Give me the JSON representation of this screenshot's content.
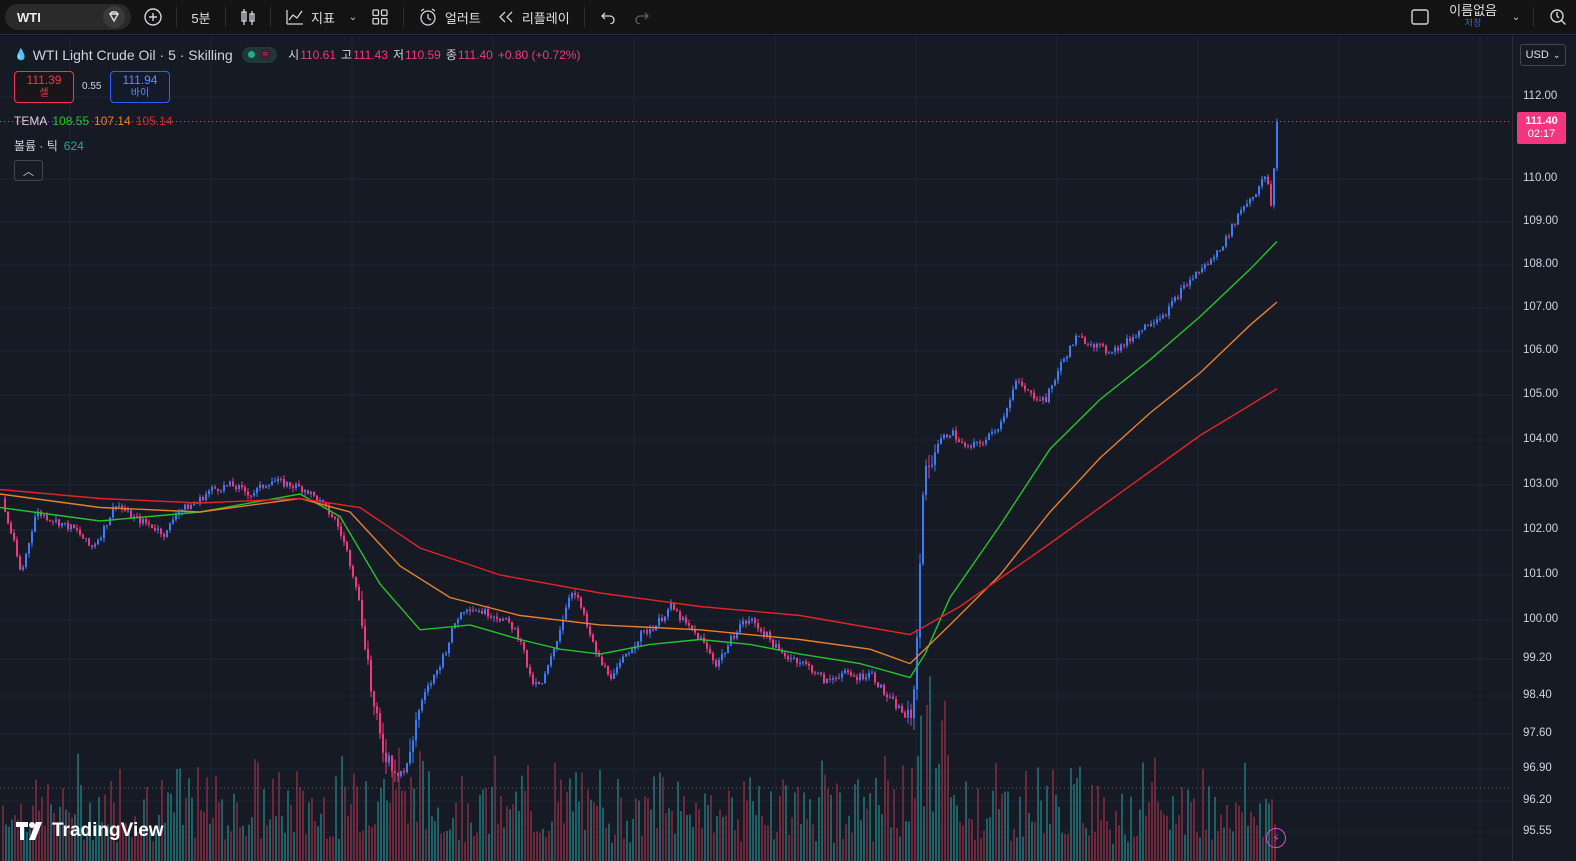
{
  "toolbar": {
    "symbol": "WTI",
    "interval": "5분",
    "indicators_label": "지표",
    "alert_label": "얼러트",
    "replay_label": "리플레이",
    "layout_name": "이름없음",
    "layout_status": "저장"
  },
  "legend": {
    "title": "WTI Light Crude Oil · 5 · Skilling",
    "open_key": "시",
    "open": "110.61",
    "high_key": "고",
    "high": "111.43",
    "low_key": "저",
    "low": "110.59",
    "close_key": "종",
    "close": "111.40",
    "change": "+0.80 (+0.72%)",
    "sell_price": "111.39",
    "sell_label": "셀",
    "spread": "0.55",
    "buy_price": "111.94",
    "buy_label": "바이",
    "tema_label": "TEMA",
    "tema_values": [
      "108.55",
      "107.14",
      "105.14"
    ],
    "tema_colors": [
      "#22c52a",
      "#e8802a",
      "#e22424"
    ],
    "volume_label": "볼륨 · 틱",
    "volume_value": "624"
  },
  "price_axis": {
    "currency": "USD",
    "ticks": [
      "112.00",
      "110.00",
      "109.00",
      "108.00",
      "107.00",
      "106.00",
      "105.00",
      "104.00",
      "103.00",
      "102.00",
      "101.00",
      "100.00",
      "99.20",
      "98.40",
      "97.60",
      "96.90",
      "96.20",
      "95.55"
    ],
    "last_price": "111.40",
    "countdown": "02:17"
  },
  "colors": {
    "up": "#3b7bf6",
    "down": "#f23680",
    "vol_up": "#1f6f72",
    "vol_down": "#7a2b3e",
    "background": "#161a25"
  },
  "branding": {
    "logo_text": "TradingView"
  },
  "chart_data": {
    "type": "candlestick",
    "title": "WTI Light Crude Oil · 5 · Skilling",
    "y_ticks": [
      112.0,
      110.0,
      109.0,
      108.0,
      107.0,
      106.0,
      105.0,
      104.0,
      103.0,
      102.0,
      101.0,
      100.0,
      99.2,
      98.4,
      97.6,
      96.9,
      96.2,
      95.55
    ],
    "close_path": [
      [
        0,
        102.7
      ],
      [
        12,
        101.8
      ],
      [
        20,
        101.0
      ],
      [
        35,
        102.4
      ],
      [
        55,
        102.2
      ],
      [
        75,
        102.0
      ],
      [
        90,
        101.6
      ],
      [
        100,
        101.9
      ],
      [
        115,
        102.6
      ],
      [
        130,
        102.3
      ],
      [
        150,
        102.1
      ],
      [
        165,
        101.9
      ],
      [
        175,
        102.4
      ],
      [
        195,
        102.6
      ],
      [
        210,
        102.9
      ],
      [
        230,
        103.0
      ],
      [
        250,
        102.8
      ],
      [
        270,
        103.1
      ],
      [
        290,
        103.0
      ],
      [
        305,
        102.9
      ],
      [
        320,
        102.6
      ],
      [
        335,
        102.2
      ],
      [
        345,
        101.6
      ],
      [
        355,
        100.8
      ],
      [
        365,
        99.5
      ],
      [
        372,
        98.2
      ],
      [
        380,
        97.4
      ],
      [
        392,
        97.0
      ],
      [
        405,
        96.8
      ],
      [
        415,
        97.9
      ],
      [
        425,
        98.5
      ],
      [
        435,
        98.9
      ],
      [
        445,
        99.4
      ],
      [
        455,
        100.0
      ],
      [
        465,
        100.3
      ],
      [
        480,
        100.2
      ],
      [
        495,
        100.1
      ],
      [
        510,
        99.9
      ],
      [
        520,
        99.6
      ],
      [
        530,
        98.7
      ],
      [
        540,
        98.6
      ],
      [
        550,
        99.2
      ],
      [
        560,
        99.9
      ],
      [
        570,
        100.7
      ],
      [
        578,
        100.4
      ],
      [
        590,
        99.6
      ],
      [
        600,
        99.1
      ],
      [
        612,
        98.8
      ],
      [
        625,
        99.3
      ],
      [
        640,
        99.7
      ],
      [
        655,
        99.9
      ],
      [
        670,
        100.3
      ],
      [
        685,
        99.9
      ],
      [
        700,
        99.6
      ],
      [
        715,
        99.1
      ],
      [
        725,
        99.4
      ],
      [
        738,
        99.9
      ],
      [
        750,
        100.0
      ],
      [
        765,
        99.7
      ],
      [
        780,
        99.3
      ],
      [
        795,
        99.2
      ],
      [
        810,
        99.0
      ],
      [
        825,
        98.7
      ],
      [
        840,
        98.9
      ],
      [
        855,
        98.8
      ],
      [
        870,
        98.9
      ],
      [
        885,
        98.4
      ],
      [
        900,
        98.1
      ],
      [
        910,
        97.8
      ],
      [
        916,
        99.6
      ],
      [
        922,
        103.0
      ],
      [
        935,
        103.9
      ],
      [
        950,
        104.2
      ],
      [
        965,
        103.8
      ],
      [
        985,
        104.0
      ],
      [
        1000,
        104.4
      ],
      [
        1015,
        105.3
      ],
      [
        1030,
        105.0
      ],
      [
        1045,
        104.9
      ],
      [
        1060,
        105.7
      ],
      [
        1075,
        106.3
      ],
      [
        1090,
        106.2
      ],
      [
        1105,
        106.0
      ],
      [
        1120,
        106.1
      ],
      [
        1135,
        106.4
      ],
      [
        1150,
        106.7
      ],
      [
        1165,
        106.9
      ],
      [
        1180,
        107.4
      ],
      [
        1195,
        107.8
      ],
      [
        1210,
        108.1
      ],
      [
        1225,
        108.6
      ],
      [
        1240,
        109.3
      ],
      [
        1255,
        109.7
      ],
      [
        1265,
        110.1
      ],
      [
        1270,
        109.4
      ],
      [
        1277,
        111.4
      ]
    ],
    "tema_series": [
      {
        "name": "TEMA",
        "values": [
          [
            0,
            102.5
          ],
          [
            100,
            102.2
          ],
          [
            200,
            102.4
          ],
          [
            300,
            102.8
          ],
          [
            340,
            102.3
          ],
          [
            380,
            100.8
          ],
          [
            420,
            99.8
          ],
          [
            470,
            99.9
          ],
          [
            520,
            99.6
          ],
          [
            560,
            99.4
          ],
          [
            600,
            99.3
          ],
          [
            650,
            99.5
          ],
          [
            700,
            99.6
          ],
          [
            750,
            99.5
          ],
          [
            800,
            99.3
          ],
          [
            860,
            99.1
          ],
          [
            910,
            98.8
          ],
          [
            925,
            99.3
          ],
          [
            950,
            100.5
          ],
          [
            1000,
            102.1
          ],
          [
            1050,
            103.8
          ],
          [
            1100,
            104.9
          ],
          [
            1150,
            105.8
          ],
          [
            1200,
            106.8
          ],
          [
            1250,
            107.9
          ],
          [
            1277,
            108.55
          ]
        ]
      },
      {
        "name": "TEMA",
        "values": [
          [
            0,
            102.8
          ],
          [
            100,
            102.5
          ],
          [
            200,
            102.4
          ],
          [
            300,
            102.7
          ],
          [
            350,
            102.4
          ],
          [
            400,
            101.2
          ],
          [
            450,
            100.5
          ],
          [
            520,
            100.1
          ],
          [
            600,
            99.9
          ],
          [
            700,
            99.8
          ],
          [
            800,
            99.6
          ],
          [
            870,
            99.4
          ],
          [
            910,
            99.1
          ],
          [
            950,
            99.9
          ],
          [
            1000,
            101.0
          ],
          [
            1050,
            102.4
          ],
          [
            1100,
            103.6
          ],
          [
            1150,
            104.6
          ],
          [
            1200,
            105.5
          ],
          [
            1250,
            106.6
          ],
          [
            1277,
            107.14
          ]
        ]
      },
      {
        "name": "TEMA",
        "values": [
          [
            0,
            102.9
          ],
          [
            100,
            102.7
          ],
          [
            200,
            102.6
          ],
          [
            300,
            102.7
          ],
          [
            360,
            102.5
          ],
          [
            420,
            101.6
          ],
          [
            500,
            101.0
          ],
          [
            600,
            100.6
          ],
          [
            700,
            100.3
          ],
          [
            800,
            100.1
          ],
          [
            910,
            99.7
          ],
          [
            960,
            100.3
          ],
          [
            1050,
            101.7
          ],
          [
            1100,
            102.5
          ],
          [
            1150,
            103.3
          ],
          [
            1200,
            104.1
          ],
          [
            1277,
            105.14
          ]
        ]
      }
    ]
  }
}
